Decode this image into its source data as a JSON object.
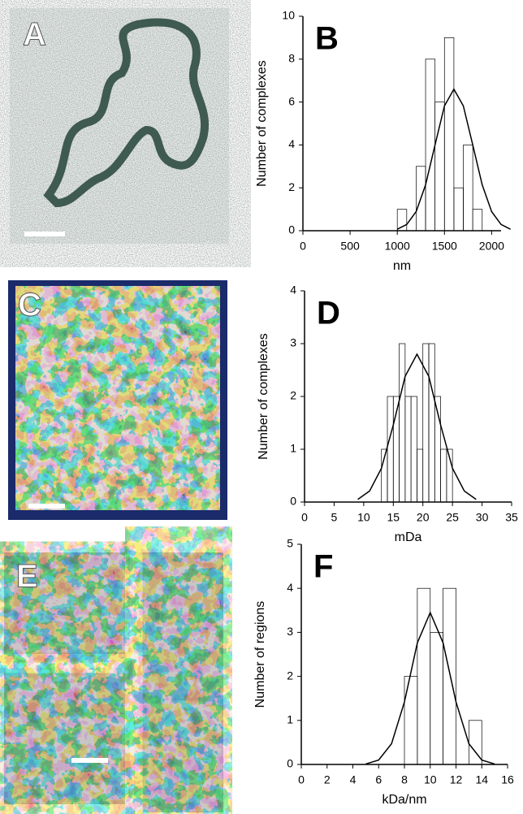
{
  "images": [
    {
      "label": "A"
    },
    {
      "label": "C"
    },
    {
      "label": "E"
    }
  ],
  "chart_data": [
    {
      "type": "histogram",
      "label": "B",
      "xlabel": "nm",
      "ylabel": "Number of complexes",
      "bins": [
        1000,
        1100,
        1200,
        1300,
        1400,
        1500,
        1600,
        1700,
        1800,
        1900,
        2000
      ],
      "values": [
        1,
        0,
        3,
        8,
        6,
        9,
        2,
        4,
        1,
        0
      ],
      "fit": {
        "x": [
          1000,
          1100,
          1200,
          1300,
          1400,
          1500,
          1600,
          1700,
          1800,
          1900,
          2000,
          2100,
          2200
        ],
        "y": [
          0.07,
          0.29,
          0.89,
          2.14,
          4.0,
          5.82,
          6.6,
          5.82,
          4.0,
          2.14,
          0.89,
          0.29,
          0.07
        ]
      },
      "xlim": [
        0,
        2100
      ],
      "ylim": [
        0,
        10
      ],
      "xticks": [
        0,
        500,
        1000,
        1500,
        2000
      ],
      "yticks": [
        0,
        2,
        4,
        6,
        8,
        10
      ],
      "color": "#000000"
    },
    {
      "type": "histogram",
      "label": "D",
      "xlabel": "mDa",
      "ylabel": "Number of complexes",
      "bins": [
        13,
        14,
        15,
        16,
        17,
        18,
        19,
        20,
        21,
        22,
        23,
        24,
        25
      ],
      "values": [
        1,
        2,
        2,
        3,
        2,
        2,
        1,
        3,
        3,
        2,
        1,
        1
      ],
      "fit": {
        "x": [
          9,
          11,
          13,
          15,
          17,
          19,
          21,
          23,
          25,
          27,
          29
        ],
        "y": [
          0.05,
          0.21,
          0.64,
          1.46,
          2.38,
          2.8,
          2.38,
          1.46,
          0.64,
          0.21,
          0.05
        ]
      },
      "xlim": [
        0,
        35
      ],
      "ylim": [
        0,
        4
      ],
      "xticks": [
        0,
        5,
        10,
        15,
        20,
        25,
        30,
        35
      ],
      "yticks": [
        0,
        1,
        2,
        3,
        4
      ],
      "color": "#000000"
    },
    {
      "type": "histogram",
      "label": "F",
      "xlabel": "kDa/nm",
      "ylabel": "Number of regions",
      "bins": [
        8,
        9,
        10,
        11,
        12,
        13,
        14
      ],
      "values": [
        2,
        4,
        3,
        4,
        0,
        1
      ],
      "fit": {
        "x": [
          5,
          6,
          7,
          8,
          9,
          10,
          11,
          12,
          13,
          14,
          15
        ],
        "y": [
          0.01,
          0.1,
          0.47,
          1.42,
          2.76,
          3.45,
          2.76,
          1.42,
          0.47,
          0.1,
          0.01
        ]
      },
      "xlim": [
        0,
        16
      ],
      "ylim": [
        0,
        5
      ],
      "xticks": [
        0,
        2,
        4,
        6,
        8,
        10,
        12,
        14,
        16
      ],
      "yticks": [
        0,
        1,
        2,
        3,
        4,
        5
      ],
      "color": "#000000"
    }
  ]
}
